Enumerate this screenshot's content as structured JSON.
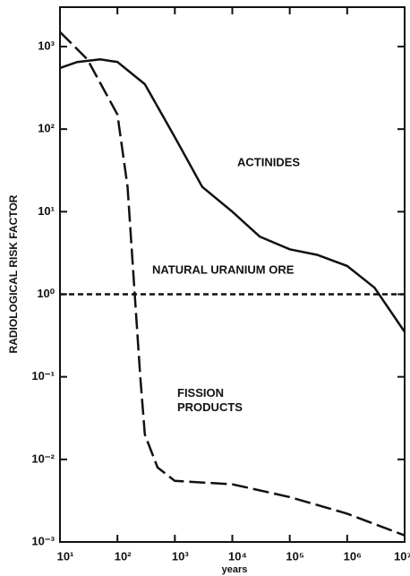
{
  "chart_data": {
    "type": "line",
    "x_label": "years",
    "y_label": "RADIOLOGICAL RISK FACTOR",
    "xlog": true,
    "ylog": true,
    "xlim": [
      10,
      10000000
    ],
    "ylim": [
      0.001,
      3000
    ],
    "xticks": [
      {
        "value": 10,
        "label": "10¹"
      },
      {
        "value": 100,
        "label": "10²"
      },
      {
        "value": 1000,
        "label": "10³"
      },
      {
        "value": 10000,
        "label": "10⁴"
      },
      {
        "value": 100000,
        "label": "10⁵"
      },
      {
        "value": 1000000,
        "label": "10⁶"
      },
      {
        "value": 10000000,
        "label": "10⁷"
      }
    ],
    "yticks": [
      {
        "value": 0.001,
        "label": "10⁻³"
      },
      {
        "value": 0.01,
        "label": "10⁻²"
      },
      {
        "value": 0.1,
        "label": "10⁻¹"
      },
      {
        "value": 1,
        "label": "10⁰"
      },
      {
        "value": 10,
        "label": "10¹"
      },
      {
        "value": 100,
        "label": "10²"
      },
      {
        "value": 1000,
        "label": "10³"
      }
    ],
    "series": [
      {
        "name": "ACTINIDES",
        "color": "#111111",
        "dash": "solid",
        "x": [
          10,
          20,
          50,
          100,
          300,
          1000,
          3000,
          10000,
          30000,
          100000,
          300000,
          1000000,
          3000000,
          10000000
        ],
        "values": [
          550,
          650,
          700,
          650,
          350,
          80,
          20,
          10,
          5,
          3.5,
          3,
          2.2,
          1.2,
          0.35
        ]
      },
      {
        "name": "NATURAL URANIUM ORE",
        "color": "#111111",
        "dash": "short",
        "x": [
          10,
          10000000
        ],
        "values": [
          1,
          1
        ]
      },
      {
        "name": "FISSION PRODUCTS",
        "color": "#111111",
        "dash": "long",
        "x": [
          10,
          30,
          100,
          150,
          200,
          250,
          300,
          500,
          1000,
          10000,
          100000,
          1000000,
          10000000
        ],
        "values": [
          1500,
          700,
          150,
          20,
          1,
          0.1,
          0.02,
          0.008,
          0.0055,
          0.005,
          0.0035,
          0.0022,
          0.0012
        ]
      }
    ]
  }
}
